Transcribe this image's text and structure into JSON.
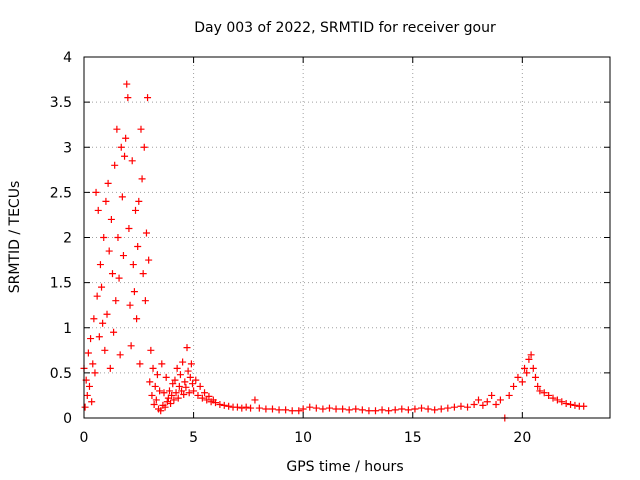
{
  "chart_data": {
    "type": "scatter",
    "title": "Day 003 of 2022, SRMTID for receiver gour",
    "xlabel": "GPS time / hours",
    "ylabel": "SRMTID / TECUs",
    "xlim": [
      0,
      24
    ],
    "ylim": [
      0,
      4
    ],
    "xticks": [
      0,
      5,
      10,
      15,
      20
    ],
    "yticks": [
      0,
      0.5,
      1,
      1.5,
      2,
      2.5,
      3,
      3.5,
      4
    ],
    "xtick_labels": [
      "0",
      "5",
      "10",
      "15",
      "20"
    ],
    "ytick_labels": [
      "0",
      "0.5",
      "1",
      "1.5",
      "2",
      "2.5",
      "3",
      "3.5",
      "4"
    ],
    "grid": true,
    "marker": "+",
    "color": "#ff0000",
    "series": [
      {
        "name": "SRMTID",
        "points": [
          [
            0.0,
            0.55
          ],
          [
            0.05,
            0.12
          ],
          [
            0.1,
            0.42
          ],
          [
            0.15,
            0.25
          ],
          [
            0.2,
            0.72
          ],
          [
            0.25,
            0.35
          ],
          [
            0.3,
            0.88
          ],
          [
            0.35,
            0.18
          ],
          [
            0.4,
            0.6
          ],
          [
            0.45,
            1.1
          ],
          [
            0.5,
            0.5
          ],
          [
            0.55,
            2.5
          ],
          [
            0.6,
            1.35
          ],
          [
            0.65,
            2.3
          ],
          [
            0.7,
            0.9
          ],
          [
            0.75,
            1.7
          ],
          [
            0.8,
            1.45
          ],
          [
            0.85,
            1.05
          ],
          [
            0.9,
            2.0
          ],
          [
            0.95,
            0.75
          ],
          [
            1.0,
            2.4
          ],
          [
            1.05,
            1.15
          ],
          [
            1.1,
            2.6
          ],
          [
            1.15,
            1.85
          ],
          [
            1.2,
            0.55
          ],
          [
            1.25,
            2.2
          ],
          [
            1.3,
            1.6
          ],
          [
            1.35,
            0.95
          ],
          [
            1.4,
            2.8
          ],
          [
            1.45,
            1.3
          ],
          [
            1.5,
            3.2
          ],
          [
            1.55,
            2.0
          ],
          [
            1.6,
            1.55
          ],
          [
            1.65,
            0.7
          ],
          [
            1.7,
            3.0
          ],
          [
            1.75,
            2.45
          ],
          [
            1.8,
            1.8
          ],
          [
            1.85,
            2.9
          ],
          [
            1.9,
            3.1
          ],
          [
            1.95,
            3.7
          ],
          [
            2.0,
            3.55
          ],
          [
            2.05,
            2.1
          ],
          [
            2.1,
            1.25
          ],
          [
            2.15,
            0.8
          ],
          [
            2.2,
            2.85
          ],
          [
            2.25,
            1.7
          ],
          [
            2.3,
            1.4
          ],
          [
            2.35,
            2.3
          ],
          [
            2.4,
            1.1
          ],
          [
            2.45,
            1.9
          ],
          [
            2.5,
            2.4
          ],
          [
            2.55,
            0.6
          ],
          [
            2.6,
            3.2
          ],
          [
            2.65,
            2.65
          ],
          [
            2.7,
            1.6
          ],
          [
            2.75,
            3.0
          ],
          [
            2.8,
            1.3
          ],
          [
            2.85,
            2.05
          ],
          [
            2.9,
            3.55
          ],
          [
            2.95,
            1.75
          ],
          [
            3.0,
            0.4
          ],
          [
            3.05,
            0.75
          ],
          [
            3.1,
            0.25
          ],
          [
            3.15,
            0.55
          ],
          [
            3.2,
            0.15
          ],
          [
            3.25,
            0.35
          ],
          [
            3.3,
            0.2
          ],
          [
            3.35,
            0.48
          ],
          [
            3.4,
            0.1
          ],
          [
            3.45,
            0.3
          ],
          [
            3.5,
            0.08
          ],
          [
            3.55,
            0.6
          ],
          [
            3.6,
            0.14
          ],
          [
            3.65,
            0.28
          ],
          [
            3.7,
            0.12
          ],
          [
            3.75,
            0.45
          ],
          [
            3.8,
            0.18
          ],
          [
            3.85,
            0.22
          ],
          [
            3.9,
            0.3
          ],
          [
            3.95,
            0.16
          ],
          [
            4.0,
            0.25
          ],
          [
            4.05,
            0.38
          ],
          [
            4.1,
            0.2
          ],
          [
            4.15,
            0.42
          ],
          [
            4.2,
            0.28
          ],
          [
            4.25,
            0.55
          ],
          [
            4.3,
            0.22
          ],
          [
            4.35,
            0.35
          ],
          [
            4.4,
            0.48
          ],
          [
            4.45,
            0.3
          ],
          [
            4.5,
            0.62
          ],
          [
            4.55,
            0.26
          ],
          [
            4.6,
            0.4
          ],
          [
            4.65,
            0.34
          ],
          [
            4.7,
            0.78
          ],
          [
            4.75,
            0.52
          ],
          [
            4.8,
            0.28
          ],
          [
            4.85,
            0.45
          ],
          [
            4.9,
            0.6
          ],
          [
            4.95,
            0.38
          ],
          [
            5.0,
            0.3
          ],
          [
            5.1,
            0.42
          ],
          [
            5.2,
            0.25
          ],
          [
            5.3,
            0.35
          ],
          [
            5.4,
            0.22
          ],
          [
            5.5,
            0.28
          ],
          [
            5.6,
            0.2
          ],
          [
            5.7,
            0.24
          ],
          [
            5.8,
            0.18
          ],
          [
            5.9,
            0.2
          ],
          [
            6.0,
            0.17
          ],
          [
            6.2,
            0.15
          ],
          [
            6.4,
            0.14
          ],
          [
            6.6,
            0.13
          ],
          [
            6.8,
            0.12
          ],
          [
            7.0,
            0.12
          ],
          [
            7.2,
            0.11
          ],
          [
            7.4,
            0.12
          ],
          [
            7.6,
            0.11
          ],
          [
            7.8,
            0.2
          ],
          [
            8.0,
            0.11
          ],
          [
            8.3,
            0.1
          ],
          [
            8.6,
            0.1
          ],
          [
            8.9,
            0.09
          ],
          [
            9.2,
            0.09
          ],
          [
            9.5,
            0.08
          ],
          [
            9.8,
            0.08
          ],
          [
            10.0,
            0.1
          ],
          [
            10.3,
            0.12
          ],
          [
            10.6,
            0.11
          ],
          [
            10.9,
            0.1
          ],
          [
            11.2,
            0.11
          ],
          [
            11.5,
            0.1
          ],
          [
            11.8,
            0.1
          ],
          [
            12.1,
            0.09
          ],
          [
            12.4,
            0.1
          ],
          [
            12.7,
            0.09
          ],
          [
            13.0,
            0.08
          ],
          [
            13.3,
            0.08
          ],
          [
            13.6,
            0.09
          ],
          [
            13.9,
            0.08
          ],
          [
            14.2,
            0.09
          ],
          [
            14.5,
            0.1
          ],
          [
            14.8,
            0.09
          ],
          [
            15.1,
            0.1
          ],
          [
            15.4,
            0.11
          ],
          [
            15.7,
            0.1
          ],
          [
            16.0,
            0.09
          ],
          [
            16.3,
            0.1
          ],
          [
            16.6,
            0.11
          ],
          [
            16.9,
            0.12
          ],
          [
            17.2,
            0.13
          ],
          [
            17.5,
            0.12
          ],
          [
            17.8,
            0.15
          ],
          [
            18.0,
            0.2
          ],
          [
            18.2,
            0.14
          ],
          [
            18.4,
            0.18
          ],
          [
            18.6,
            0.25
          ],
          [
            18.8,
            0.15
          ],
          [
            19.0,
            0.2
          ],
          [
            19.2,
            0.0
          ],
          [
            19.4,
            0.25
          ],
          [
            19.6,
            0.35
          ],
          [
            19.8,
            0.45
          ],
          [
            20.0,
            0.4
          ],
          [
            20.1,
            0.55
          ],
          [
            20.2,
            0.5
          ],
          [
            20.3,
            0.65
          ],
          [
            20.4,
            0.7
          ],
          [
            20.5,
            0.55
          ],
          [
            20.6,
            0.45
          ],
          [
            20.7,
            0.35
          ],
          [
            20.8,
            0.3
          ],
          [
            21.0,
            0.28
          ],
          [
            21.2,
            0.25
          ],
          [
            21.4,
            0.22
          ],
          [
            21.6,
            0.2
          ],
          [
            21.8,
            0.18
          ],
          [
            22.0,
            0.16
          ],
          [
            22.2,
            0.15
          ],
          [
            22.4,
            0.14
          ],
          [
            22.6,
            0.13
          ],
          [
            22.8,
            0.13
          ]
        ]
      }
    ]
  }
}
